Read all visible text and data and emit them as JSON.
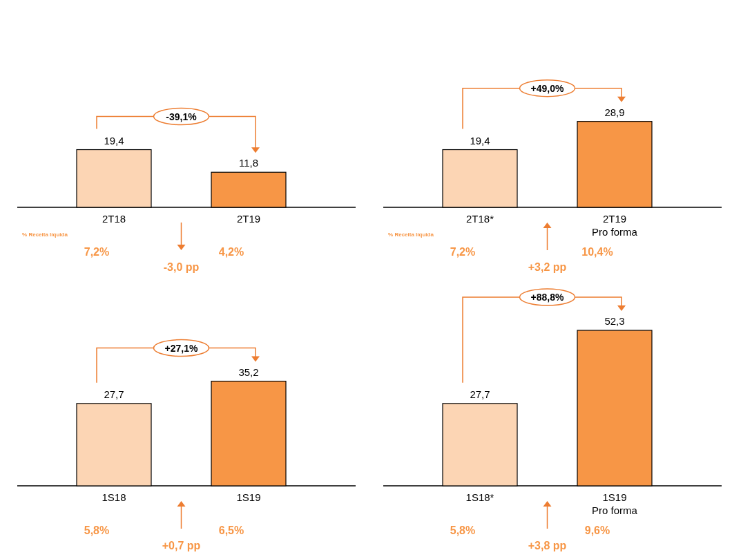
{
  "chart_data": [
    {
      "type": "bar",
      "categories": [
        "2T18",
        "2T19"
      ],
      "values": [
        19.4,
        11.8
      ],
      "value_labels": [
        "19,4",
        "11,8"
      ],
      "colors": [
        "#fcd5b4",
        "#f79646"
      ],
      "annotations": [
        "-39,1%",
        "7,2%",
        "4,2%",
        "-3,0 pp",
        "% Receita líquida"
      ]
    },
    {
      "type": "bar",
      "categories": [
        "2T18*",
        "2T19 Pro forma"
      ],
      "values": [
        19.4,
        28.9
      ],
      "value_labels": [
        "19,4",
        "28,9"
      ],
      "colors": [
        "#fcd5b4",
        "#f79646"
      ],
      "annotations": [
        "+49,0%",
        "7,2%",
        "10,4%",
        "+3,2 pp",
        "% Receita líquida"
      ]
    },
    {
      "type": "bar",
      "categories": [
        "1S18",
        "1S19"
      ],
      "values": [
        27.7,
        35.2
      ],
      "value_labels": [
        "27,7",
        "35,2"
      ],
      "colors": [
        "#fcd5b4",
        "#f79646"
      ],
      "annotations": [
        "+27,1%",
        "5,8%",
        "6,5%",
        "+0,7 pp"
      ]
    },
    {
      "type": "bar",
      "categories": [
        "1S18*",
        "1S19 Pro forma"
      ],
      "values": [
        27.7,
        52.3
      ],
      "value_labels": [
        "27,7",
        "52,3"
      ],
      "colors": [
        "#fcd5b4",
        "#f79646"
      ],
      "annotations": [
        "+88,8%",
        "5,8%",
        "9,6%",
        "+3,8 pp"
      ]
    }
  ]
}
